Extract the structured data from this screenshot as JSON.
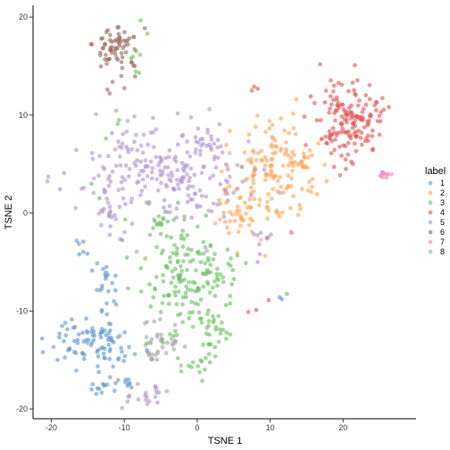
{
  "chart_data": {
    "type": "scatter",
    "xlabel": "TSNE 1",
    "ylabel": "TSNE 2",
    "xlim": [
      -22.5,
      30
    ],
    "ylim": [
      -21,
      21.2
    ],
    "xticks": [
      -20,
      -10,
      0,
      10,
      20
    ],
    "yticks": [
      -20,
      -10,
      0,
      10,
      20
    ],
    "grid": false,
    "point_opacity": 0.62,
    "legend": {
      "title": "label",
      "placement": "right",
      "entries": [
        {
          "name": "1",
          "color": "#6699CC"
        },
        {
          "name": "2",
          "color": "#FDA65B"
        },
        {
          "name": "3",
          "color": "#6DBE63"
        },
        {
          "name": "4",
          "color": "#E15759"
        },
        {
          "name": "5",
          "color": "#B394D1"
        },
        {
          "name": "6",
          "color": "#9C6B62"
        },
        {
          "name": "7",
          "color": "#F08CC2"
        },
        {
          "name": "8",
          "color": "#A6A6A6"
        }
      ]
    },
    "series": [
      {
        "name": "1",
        "clusters": [
          {
            "center": [
              -14.5,
              -13.3
            ],
            "spread": [
              2.6,
              1.3
            ],
            "n": 80
          },
          {
            "center": [
              -12.5,
              -8.5
            ],
            "spread": [
              1.0,
              2.8
            ],
            "n": 35
          },
          {
            "center": [
              -13.2,
              -18.0
            ],
            "spread": [
              0.9,
              0.4
            ],
            "n": 12
          },
          {
            "center": [
              -10.2,
              -17.3
            ],
            "spread": [
              0.7,
              0.4
            ],
            "n": 8
          },
          {
            "center": [
              -15.2,
              -4.0
            ],
            "spread": [
              0.7,
              1.2
            ],
            "n": 6
          }
        ],
        "points": [
          [
            11.3,
            -8.6
          ],
          [
            11.6,
            -8.8
          ],
          [
            -18.9,
            -12.7
          ]
        ]
      },
      {
        "name": "2",
        "clusters": [
          {
            "center": [
              9.5,
              3.4
            ],
            "spread": [
              3.2,
              2.7
            ],
            "n": 150
          },
          {
            "center": [
              5.0,
              -0.6
            ],
            "spread": [
              1.0,
              1.3
            ],
            "n": 20
          },
          {
            "center": [
              13.0,
              5.2
            ],
            "spread": [
              1.5,
              0.9
            ],
            "n": 25
          }
        ],
        "points": [
          [
            10.3,
            9.0
          ],
          [
            9.9,
            9.4
          ]
        ]
      },
      {
        "name": "3",
        "clusters": [
          {
            "center": [
              -1.5,
              -6.0
            ],
            "spread": [
              3.4,
              2.7
            ],
            "n": 150
          },
          {
            "center": [
              1.0,
              -11.5
            ],
            "spread": [
              2.0,
              1.7
            ],
            "n": 40
          },
          {
            "center": [
              0.0,
              -15.5
            ],
            "spread": [
              1.0,
              0.6
            ],
            "n": 14
          },
          {
            "center": [
              -4.5,
              -1.5
            ],
            "spread": [
              1.3,
              1.3
            ],
            "n": 15
          },
          {
            "center": [
              -8.5,
              16.3
            ],
            "spread": [
              1.0,
              1.4
            ],
            "n": 10
          }
        ],
        "points": [
          [
            -10.9,
            9.1
          ],
          [
            -10.7,
            9.5
          ],
          [
            -12.5,
            7.6
          ],
          [
            -13.4,
            1.5
          ],
          [
            -14.5,
            3.0
          ],
          [
            -6.9,
            -13.3
          ]
        ]
      },
      {
        "name": "4",
        "clusters": [
          {
            "center": [
              20.5,
              9.5
            ],
            "spread": [
              2.2,
              2.0
            ],
            "n": 140
          },
          {
            "center": [
              23.5,
              9.5
            ],
            "spread": [
              1.4,
              1.4
            ],
            "n": 20
          }
        ],
        "points": [
          [
            7.5,
            12.5
          ],
          [
            8.3,
            12.7
          ],
          [
            7.8,
            12.9
          ],
          [
            9.8,
            -8.9
          ],
          [
            7.0,
            -10.1
          ],
          [
            8.1,
            -9.9
          ]
        ]
      },
      {
        "name": "5",
        "clusters": [
          {
            "center": [
              -4.0,
              4.2
            ],
            "spread": [
              5.3,
              2.6
            ],
            "n": 240
          },
          {
            "center": [
              -11.5,
              -1.0
            ],
            "spread": [
              1.3,
              1.3
            ],
            "n": 18
          },
          {
            "center": [
              -7.5,
              -18.8
            ],
            "spread": [
              1.6,
              0.6
            ],
            "n": 20
          },
          {
            "center": [
              9.5,
              -2.5
            ],
            "spread": [
              1.2,
              0.3
            ],
            "n": 8
          }
        ],
        "points": [
          [
            8.3,
            -5.0
          ],
          [
            8.6,
            -4.2
          ],
          [
            7.4,
            1.8
          ]
        ]
      },
      {
        "name": "6",
        "clusters": [
          {
            "center": [
              -11.0,
              17.0
            ],
            "spread": [
              1.7,
              1.4
            ],
            "n": 70
          }
        ],
        "points": [
          [
            -12.0,
            12.2
          ],
          [
            -12.3,
            12.6
          ]
        ]
      },
      {
        "name": "7",
        "clusters": [
          {
            "center": [
              25.6,
              3.9
            ],
            "spread": [
              0.4,
              0.25
            ],
            "n": 12
          }
        ],
        "points": []
      },
      {
        "name": "8",
        "clusters": [
          {
            "center": [
              -5.5,
              -13.6
            ],
            "spread": [
              1.4,
              1.1
            ],
            "n": 42
          }
        ],
        "points": []
      }
    ]
  }
}
